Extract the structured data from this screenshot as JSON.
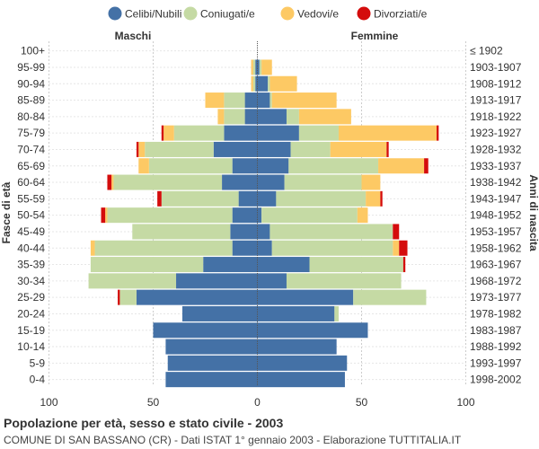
{
  "chart_data": {
    "type": "population-pyramid",
    "title": "Popolazione per età, sesso e stato civile - 2003",
    "subtitle": "COMUNE DI SAN BASSANO (CR) - Dati ISTAT 1° gennaio 2003 - Elaborazione TUTTITALIA.IT",
    "left_label": "Maschi",
    "right_label": "Femmine",
    "ylabel_left": "Fasce di età",
    "ylabel_right": "Anni di nascita",
    "xlim": [
      -100,
      100
    ],
    "xticks": [
      "100",
      "50",
      "0",
      "50",
      "100"
    ],
    "legend_position": "top",
    "legend": [
      {
        "name": "Celibi/Nubili",
        "color": "#4471a6"
      },
      {
        "name": "Coniugati/e",
        "color": "#c5daa4"
      },
      {
        "name": "Vedovi/e",
        "color": "#fdc964"
      },
      {
        "name": "Divorziati/e",
        "color": "#d40c0c"
      }
    ],
    "age_groups": [
      "100+",
      "95-99",
      "90-94",
      "85-89",
      "80-84",
      "75-79",
      "70-74",
      "65-69",
      "60-64",
      "55-59",
      "50-54",
      "45-49",
      "40-44",
      "35-39",
      "30-34",
      "25-29",
      "20-24",
      "15-19",
      "10-14",
      "5-9",
      "0-4"
    ],
    "birth_years": [
      "≤ 1902",
      "1903-1907",
      "1908-1912",
      "1913-1917",
      "1918-1922",
      "1923-1927",
      "1928-1932",
      "1933-1937",
      "1938-1942",
      "1943-1947",
      "1948-1952",
      "1953-1957",
      "1958-1962",
      "1963-1967",
      "1968-1972",
      "1973-1977",
      "1978-1982",
      "1983-1987",
      "1988-1992",
      "1993-1997",
      "1998-2002"
    ],
    "males": {
      "celibi": [
        0,
        1,
        1,
        6,
        6,
        16,
        21,
        12,
        17,
        9,
        12,
        13,
        12,
        26,
        39,
        58,
        36,
        50,
        44,
        43,
        44
      ],
      "coniugati": [
        0,
        1,
        1,
        10,
        10,
        24,
        33,
        40,
        52,
        37,
        60,
        47,
        66,
        54,
        42,
        8,
        0,
        0,
        0,
        0,
        0
      ],
      "vedovi": [
        0,
        1,
        1,
        9,
        3,
        5,
        3,
        5,
        1,
        0,
        1,
        0,
        2,
        0,
        0,
        0,
        0,
        0,
        0,
        0,
        0
      ],
      "divorziati": [
        0,
        0,
        0,
        0,
        0,
        1,
        1,
        0,
        2,
        2,
        2,
        0,
        0,
        0,
        0,
        1,
        0,
        0,
        0,
        0,
        0
      ]
    },
    "females": {
      "nubili": [
        0,
        1,
        5,
        6,
        14,
        20,
        16,
        15,
        13,
        9,
        2,
        6,
        7,
        25,
        14,
        46,
        37,
        53,
        38,
        43,
        42
      ],
      "coniugate": [
        0,
        1,
        1,
        1,
        6,
        19,
        19,
        43,
        37,
        43,
        46,
        59,
        58,
        45,
        55,
        35,
        2,
        0,
        0,
        0,
        0
      ],
      "vedove": [
        0,
        5,
        13,
        31,
        25,
        47,
        27,
        22,
        9,
        7,
        5,
        0,
        3,
        0,
        0,
        0,
        0,
        0,
        0,
        0,
        0
      ],
      "divorziate": [
        0,
        0,
        0,
        0,
        0,
        1,
        1,
        2,
        0,
        1,
        0,
        3,
        4,
        1,
        0,
        0,
        0,
        0,
        0,
        0,
        0
      ]
    }
  }
}
